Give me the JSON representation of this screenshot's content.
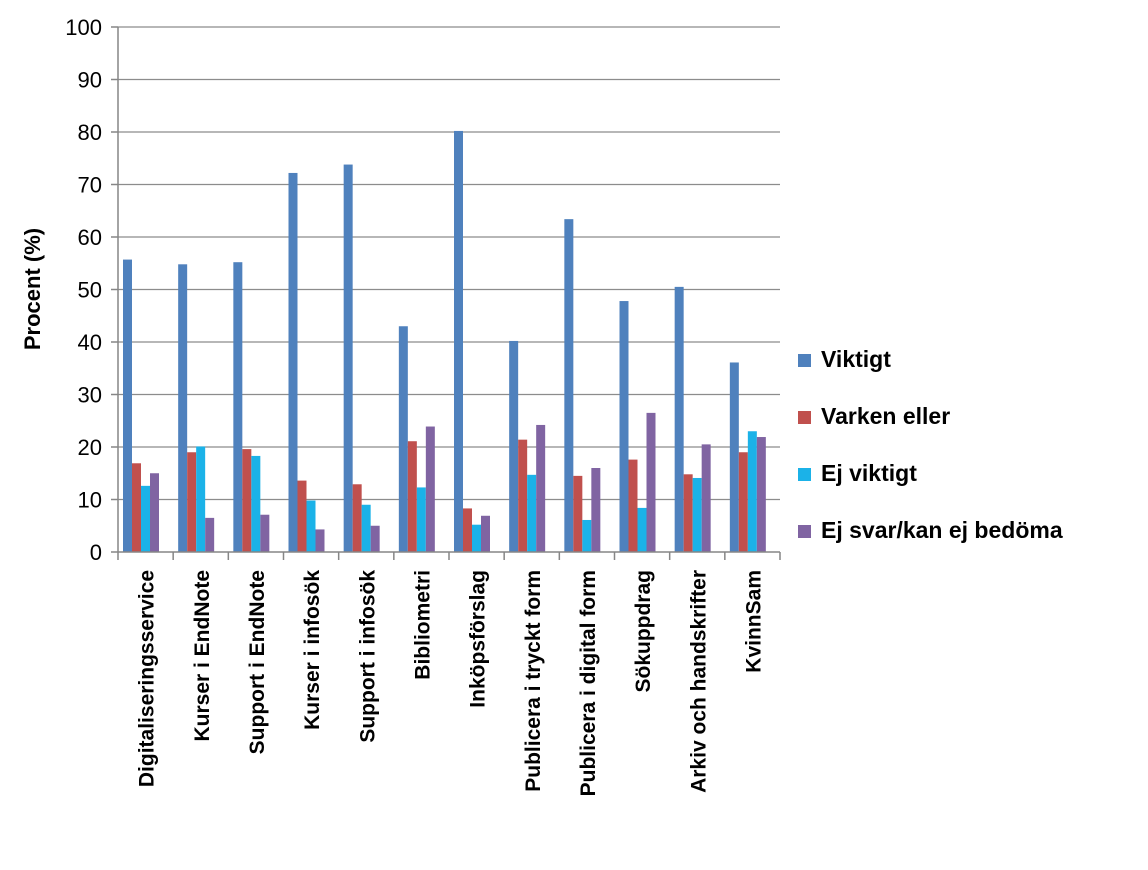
{
  "chart_data": {
    "type": "bar",
    "ylabel": "Procent (%)",
    "ylim": [
      0,
      100
    ],
    "yticks": [
      0,
      10,
      20,
      30,
      40,
      50,
      60,
      70,
      80,
      90,
      100
    ],
    "grid": true,
    "legend_position": "right",
    "categories": [
      "Digitaliseringsservice",
      "Kurser i EndNote",
      "Support i EndNote",
      "Kurser i infosök",
      "Support i infosök",
      "Bibliometri",
      "Inköpsförslag",
      "Publicera i tryckt form",
      "Publicera i digital form",
      "Sökuppdrag",
      "Arkiv och handskrifter",
      "KvinnSam"
    ],
    "series": [
      {
        "name": "Viktigt",
        "color": "#4F81BD",
        "values": [
          55.7,
          54.8,
          55.2,
          72.2,
          73.8,
          43.0,
          80.2,
          40.2,
          63.4,
          47.8,
          50.5,
          36.1
        ]
      },
      {
        "name": "Varken eller",
        "color": "#C0504D",
        "values": [
          16.9,
          19.0,
          19.6,
          13.6,
          12.9,
          21.1,
          8.3,
          21.4,
          14.5,
          17.6,
          14.8,
          19.0
        ]
      },
      {
        "name": "Ej viktigt",
        "color": "#1BB2E8",
        "values": [
          12.6,
          20.1,
          18.3,
          9.8,
          9.0,
          12.3,
          5.2,
          14.7,
          6.1,
          8.4,
          14.1,
          23.0
        ]
      },
      {
        "name": "Ej svar/kan ej bedöma",
        "color": "#8064A2",
        "values": [
          15.0,
          6.5,
          7.1,
          4.3,
          5.0,
          23.9,
          6.9,
          24.2,
          16.0,
          26.5,
          20.5,
          21.9
        ]
      }
    ]
  }
}
